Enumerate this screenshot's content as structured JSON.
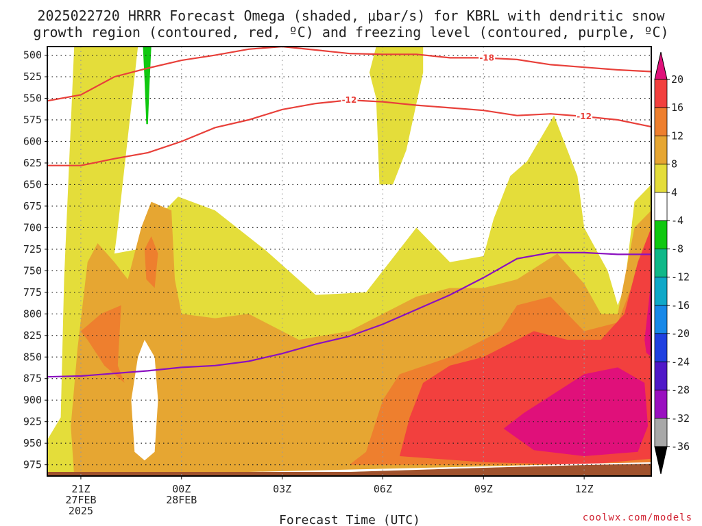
{
  "title": {
    "line1": "2025022720 HRRR Forecast Omega (shaded, μbar/s) for KBRL with dendritic snow",
    "line2": "growth region (contoured, red, ºC) and freezing level (contoured, purple, ºC)"
  },
  "xlabel": "Forecast Time (UTC)",
  "credit": "coolwx.com/models",
  "colors": {
    "dendritic_contour": "#e8403a",
    "freezing_level": "#8a10c0",
    "terrain": "#a0522d"
  },
  "chart_data": {
    "type": "heatmap",
    "title": "2025022720 HRRR Forecast Omega (shaded, μbar/s) for KBRL with dendritic snow growth region (contoured, red, ºC) and freezing level (contoured, purple, ºC)",
    "xlabel": "Forecast Time (UTC)",
    "ylabel": "",
    "xlim": [
      -1,
      17
    ],
    "ylim": [
      988,
      490
    ],
    "grid": true,
    "x_ticks": [
      {
        "x": 0,
        "lines": [
          "21Z",
          "27FEB",
          "2025"
        ]
      },
      {
        "x": 3,
        "lines": [
          "00Z",
          "28FEB"
        ]
      },
      {
        "x": 6,
        "lines": [
          "03Z"
        ]
      },
      {
        "x": 9,
        "lines": [
          "06Z"
        ]
      },
      {
        "x": 12,
        "lines": [
          "09Z"
        ]
      },
      {
        "x": 15,
        "lines": [
          "12Z"
        ]
      }
    ],
    "y_ticks": [
      500,
      525,
      550,
      575,
      600,
      625,
      650,
      675,
      700,
      725,
      750,
      775,
      800,
      825,
      850,
      875,
      900,
      925,
      950,
      975
    ],
    "colorbar": {
      "labels": [
        "20",
        "16",
        "12",
        "8",
        "4",
        "-4",
        "-8",
        "-12",
        "-16",
        "-20",
        "-24",
        "-28",
        "-32",
        "-36"
      ],
      "bins": [
        {
          "range": "20+",
          "color": "#e0107a"
        },
        {
          "range": "16-20",
          "color": "#f2403e"
        },
        {
          "range": "12-16",
          "color": "#ee7f2e"
        },
        {
          "range": "8-12",
          "color": "#e6a632"
        },
        {
          "range": "4-8",
          "color": "#e4dd3a"
        },
        {
          "range": "-4-4",
          "color": "#ffffff"
        },
        {
          "range": "-8--4",
          "color": "#10c810"
        },
        {
          "range": "-12--8",
          "color": "#10b888"
        },
        {
          "range": "-16--12",
          "color": "#10a8c8"
        },
        {
          "range": "-20--16",
          "color": "#1888e8"
        },
        {
          "range": "-24--20",
          "color": "#2040e0"
        },
        {
          "range": "-28--24",
          "color": "#5018c8"
        },
        {
          "range": "-32--28",
          "color": "#9a10c0"
        },
        {
          "range": "-36--32",
          "color": "#a8a8a8"
        },
        {
          "range": "<-36",
          "color": "#000000"
        }
      ]
    },
    "series": [
      {
        "color": "#e8403a",
        "label": "-18",
        "label_at": 12.1,
        "points": [
          [
            -1,
            553
          ],
          [
            0,
            546
          ],
          [
            1,
            525
          ],
          [
            2,
            515
          ],
          [
            3,
            506
          ],
          [
            4,
            500
          ],
          [
            5,
            493
          ],
          [
            6,
            490
          ],
          [
            7,
            494
          ],
          [
            8,
            498
          ],
          [
            9,
            499
          ],
          [
            10,
            499
          ],
          [
            11,
            503
          ],
          [
            12,
            503
          ],
          [
            13,
            505
          ],
          [
            14,
            511
          ],
          [
            15,
            514
          ],
          [
            16,
            517
          ],
          [
            17,
            519
          ]
        ]
      },
      {
        "color": "#e8403a",
        "label": "-12",
        "label_at": 8.0,
        "label2_at": 15.0,
        "points": [
          [
            -1,
            628
          ],
          [
            0,
            628
          ],
          [
            1,
            620
          ],
          [
            2,
            613
          ],
          [
            3,
            600
          ],
          [
            4,
            584
          ],
          [
            5,
            575
          ],
          [
            6,
            563
          ],
          [
            7,
            556
          ],
          [
            8,
            552
          ],
          [
            9,
            554
          ],
          [
            10,
            558
          ],
          [
            11,
            561
          ],
          [
            12,
            564
          ],
          [
            13,
            570
          ],
          [
            14,
            568
          ],
          [
            15,
            571
          ],
          [
            16,
            575
          ],
          [
            17,
            583
          ]
        ]
      },
      {
        "color": "#8a10c0",
        "label": "",
        "points": [
          [
            -1,
            873
          ],
          [
            0,
            872
          ],
          [
            1,
            869
          ],
          [
            2,
            866
          ],
          [
            3,
            862
          ],
          [
            4,
            860
          ],
          [
            5,
            855
          ],
          [
            6,
            846
          ],
          [
            7,
            835
          ],
          [
            8,
            826
          ],
          [
            9,
            812
          ],
          [
            10,
            795
          ],
          [
            11,
            778
          ],
          [
            12,
            758
          ],
          [
            13,
            736
          ],
          [
            14,
            729
          ],
          [
            15,
            729
          ],
          [
            16,
            731
          ],
          [
            17,
            731
          ]
        ]
      }
    ],
    "shaded_regions": [
      {
        "level": "4-8",
        "points": [
          [
            -1,
            988
          ],
          [
            -1,
            946
          ],
          [
            -0.6,
            920
          ],
          [
            -0.5,
            760
          ],
          [
            -0.2,
            490
          ],
          [
            1.7,
            490
          ],
          [
            1.5,
            560
          ],
          [
            1.1,
            700
          ],
          [
            1.0,
            730
          ],
          [
            1.7,
            725
          ],
          [
            2.0,
            700
          ],
          [
            2.9,
            664
          ],
          [
            4.0,
            680
          ],
          [
            5.5,
            726
          ],
          [
            7.0,
            778
          ],
          [
            8.5,
            775
          ],
          [
            9.6,
            720
          ],
          [
            10.0,
            700
          ],
          [
            11.0,
            740
          ],
          [
            12.0,
            733
          ],
          [
            12.3,
            690
          ],
          [
            12.8,
            640
          ],
          [
            13.3,
            623
          ],
          [
            14.1,
            570
          ],
          [
            14.8,
            640
          ],
          [
            15.0,
            700
          ],
          [
            15.7,
            750
          ],
          [
            16.0,
            790
          ],
          [
            16.2,
            770
          ],
          [
            16.5,
            670
          ],
          [
            17,
            650
          ],
          [
            17,
            988
          ]
        ]
      },
      {
        "level": "4-8",
        "points": [
          [
            8.8,
            550
          ],
          [
            8.6,
            520
          ],
          [
            8.8,
            490
          ],
          [
            10.2,
            490
          ],
          [
            10.2,
            520
          ],
          [
            9.7,
            610
          ],
          [
            9.3,
            650
          ],
          [
            8.9,
            650
          ]
        ]
      },
      {
        "level": "8-12",
        "points": [
          [
            -0.2,
            988
          ],
          [
            -0.3,
            930
          ],
          [
            -0.1,
            840
          ],
          [
            0.2,
            740
          ],
          [
            0.5,
            718
          ],
          [
            1.0,
            740
          ],
          [
            1.4,
            760
          ],
          [
            1.8,
            700
          ],
          [
            2.1,
            670
          ],
          [
            2.7,
            680
          ],
          [
            2.8,
            760
          ],
          [
            3.0,
            800
          ],
          [
            4.0,
            805
          ],
          [
            5.0,
            800
          ],
          [
            6.5,
            830
          ],
          [
            8.0,
            820
          ],
          [
            9.0,
            800
          ],
          [
            10.0,
            780
          ],
          [
            11.0,
            770
          ],
          [
            12.0,
            770
          ],
          [
            13.0,
            760
          ],
          [
            14.2,
            730
          ],
          [
            15.0,
            765
          ],
          [
            15.5,
            800
          ],
          [
            16.0,
            800
          ],
          [
            16.5,
            700
          ],
          [
            17,
            680
          ],
          [
            17,
            988
          ]
        ]
      },
      {
        "level": "12-16",
        "points": [
          [
            0,
            820
          ],
          [
            0.6,
            800
          ],
          [
            1.2,
            790
          ],
          [
            1.1,
            860
          ],
          [
            1.3,
            880
          ],
          [
            0.7,
            860
          ],
          [
            0.2,
            830
          ]
        ]
      },
      {
        "level": "12-16",
        "points": [
          [
            1.9,
            725
          ],
          [
            2.1,
            710
          ],
          [
            2.3,
            730
          ],
          [
            2.2,
            770
          ],
          [
            1.95,
            760
          ]
        ]
      },
      {
        "level": "12-16",
        "points": [
          [
            8.0,
            975
          ],
          [
            8.5,
            960
          ],
          [
            9.0,
            900
          ],
          [
            9.5,
            870
          ],
          [
            11.0,
            850
          ],
          [
            12.5,
            820
          ],
          [
            13.0,
            790
          ],
          [
            14.0,
            780
          ],
          [
            15.0,
            820
          ],
          [
            16.0,
            810
          ],
          [
            16.5,
            760
          ],
          [
            17,
            720
          ],
          [
            17,
            975
          ]
        ]
      },
      {
        "level": "16-20",
        "points": [
          [
            9.5,
            965
          ],
          [
            9.8,
            920
          ],
          [
            10.2,
            880
          ],
          [
            11.0,
            860
          ],
          [
            12.0,
            850
          ],
          [
            13.5,
            820
          ],
          [
            14.5,
            830
          ],
          [
            15.5,
            830
          ],
          [
            16.2,
            800
          ],
          [
            16.6,
            740
          ],
          [
            17,
            700
          ],
          [
            17,
            968
          ],
          [
            15.0,
            975
          ],
          [
            12.0,
            972
          ]
        ]
      },
      {
        "level": "20+",
        "points": [
          [
            12.6,
            933
          ],
          [
            13.2,
            915
          ],
          [
            14.0,
            895
          ],
          [
            15.0,
            870
          ],
          [
            16.0,
            862
          ],
          [
            16.8,
            880
          ],
          [
            16.9,
            930
          ],
          [
            16.6,
            960
          ],
          [
            15.0,
            965
          ],
          [
            13.5,
            958
          ]
        ]
      },
      {
        "level": "20+",
        "points": [
          [
            16.8,
            830
          ],
          [
            17,
            760
          ],
          [
            17,
            850
          ],
          [
            16.85,
            845
          ]
        ]
      },
      {
        "level": "-8--4",
        "points": [
          [
            1.85,
            490
          ],
          [
            2.1,
            490
          ],
          [
            2.05,
            530
          ],
          [
            2.0,
            580
          ],
          [
            1.95,
            580
          ],
          [
            1.9,
            530
          ]
        ]
      },
      {
        "level": "-4-4",
        "points": [
          [
            1.6,
            960
          ],
          [
            1.5,
            900
          ],
          [
            1.7,
            850
          ],
          [
            1.9,
            830
          ],
          [
            2.2,
            850
          ],
          [
            2.3,
            900
          ],
          [
            2.2,
            960
          ],
          [
            1.9,
            970
          ]
        ]
      }
    ]
  }
}
